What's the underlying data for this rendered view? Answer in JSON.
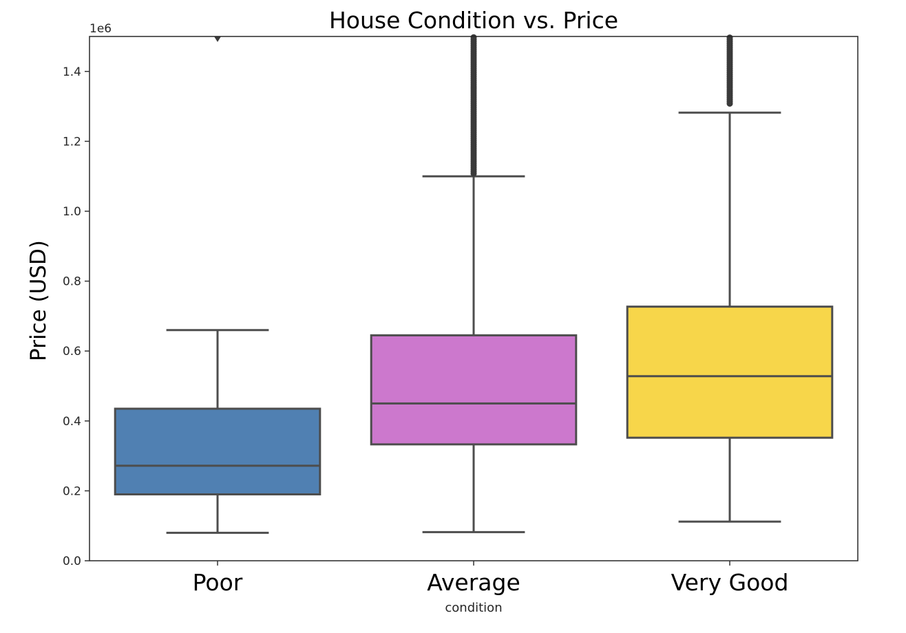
{
  "chart_data": {
    "type": "box",
    "title": "House Condition vs. Price",
    "xlabel": "condition",
    "ylabel": "Price (USD)",
    "y_offset_label": "1e6",
    "ylim": [
      0,
      1500000
    ],
    "yticks": [
      0,
      200000,
      400000,
      600000,
      800000,
      1000000,
      1200000,
      1400000
    ],
    "ytick_labels": [
      "0.0",
      "0.2",
      "0.4",
      "0.6",
      "0.8",
      "1.0",
      "1.2",
      "1.4"
    ],
    "categories": [
      "Poor",
      "Average",
      "Very Good"
    ],
    "colors": [
      "#5080b2",
      "#cc78cd",
      "#f7d64a"
    ],
    "edge_color": "#4d4d4d",
    "boxes": [
      {
        "label": "Poor",
        "whisker_low": 80000,
        "q1": 190000,
        "median": 272000,
        "q3": 435000,
        "whisker_high": 660000,
        "outliers": [
          1495000
        ]
      },
      {
        "label": "Average",
        "whisker_low": 82000,
        "q1": 333000,
        "median": 450000,
        "q3": 645000,
        "whisker_high": 1100000,
        "outliers_band": [
          1100000,
          1500000
        ]
      },
      {
        "label": "Very Good",
        "whisker_low": 112000,
        "q1": 352000,
        "median": 528000,
        "q3": 727000,
        "whisker_high": 1282000,
        "outliers_band": [
          1300000,
          1500000
        ]
      }
    ]
  }
}
